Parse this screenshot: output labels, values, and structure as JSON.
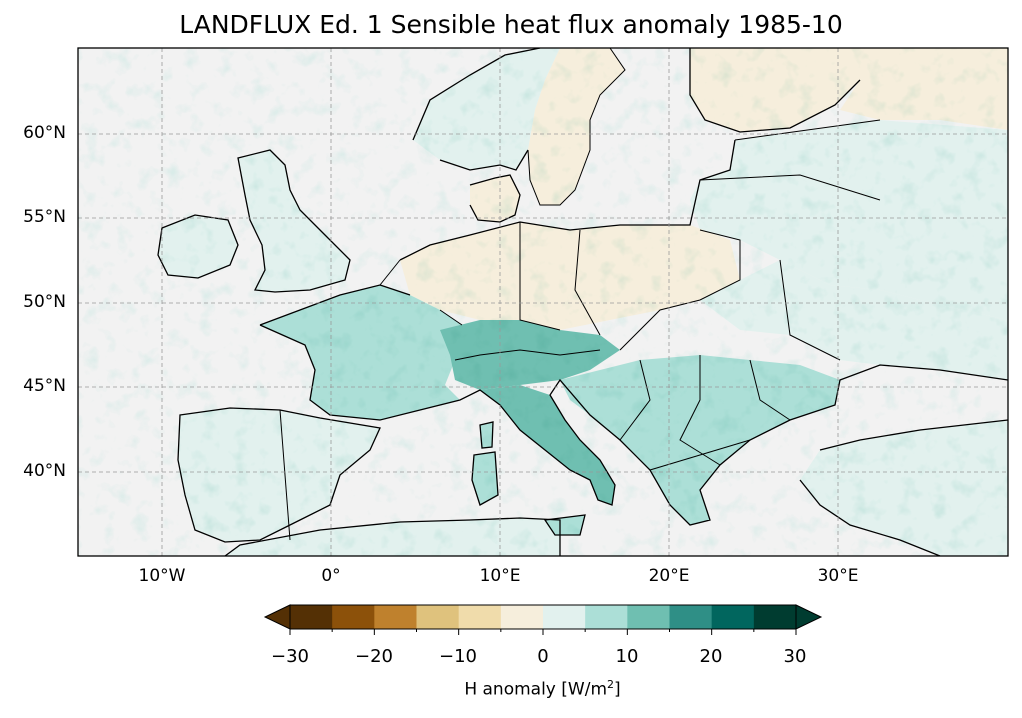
{
  "title": "LANDFLUX Ed. 1 Sensible heat flux anomaly 1985-10",
  "map": {
    "projection": "PlateCarree",
    "lon_range": [
      -15,
      40
    ],
    "lat_range": [
      35,
      65
    ],
    "lat_ticks": [
      "60°N",
      "55°N",
      "50°N",
      "45°N",
      "40°N"
    ],
    "lon_ticks": [
      "10°W",
      "0°",
      "10°E",
      "20°E",
      "30°E"
    ],
    "ocean_color": "#f2f2f2",
    "coastline_color": "#000000",
    "gridlines": true
  },
  "colorbar": {
    "label_prefix": "H anomaly [W/m",
    "label_sup": "2",
    "label_suffix": "]",
    "tick_labels": [
      "−30",
      "−20",
      "−10",
      "0",
      "10",
      "20",
      "30"
    ],
    "levels": [
      -30,
      -25,
      -20,
      -15,
      -10,
      -5,
      0,
      5,
      10,
      15,
      20,
      25,
      30
    ],
    "colors": [
      "#543005",
      "#8c510a",
      "#bf812d",
      "#dfc27d",
      "#f0dcab",
      "#f6eedc",
      "#e2f1ee",
      "#acdfd7",
      "#6fbfb1",
      "#2f8f86",
      "#01665e",
      "#003c30"
    ],
    "extend": "both"
  }
}
